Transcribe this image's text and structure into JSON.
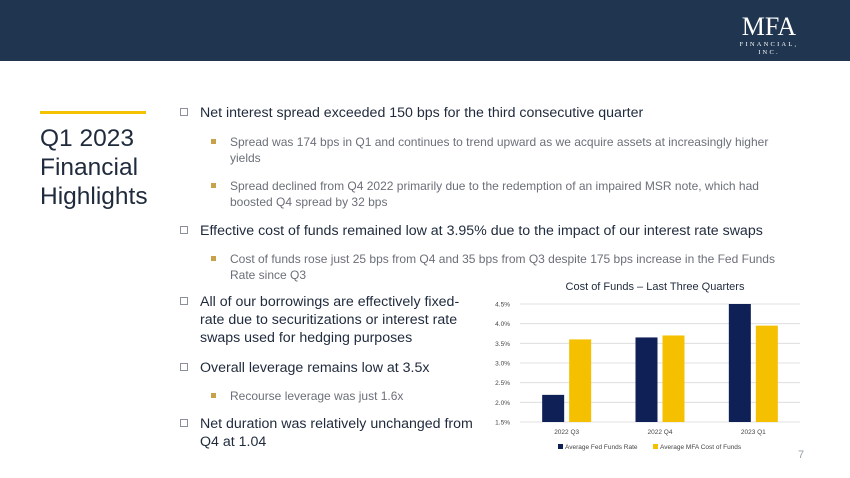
{
  "logo": {
    "main": "MFA",
    "sub": "FINANCIAL, INC."
  },
  "title": {
    "line1": "Q1 2023",
    "line2": "Financial",
    "line3": "Highlights"
  },
  "bullets": [
    {
      "text": "Net interest spread exceeded 150 bps for the third consecutive quarter",
      "subs": [
        "Spread was 174 bps in Q1 and continues to trend upward as we acquire assets at increasingly higher yields",
        "Spread declined from Q4 2022 primarily due to the redemption of an impaired MSR note, which had boosted Q4 spread by 32 bps"
      ]
    },
    {
      "text": "Effective cost of funds remained low at 3.95% due to the impact of our interest rate swaps",
      "subs": [
        "Cost of funds rose just 25 bps from Q4 and 35 bps from Q3 despite 175 bps increase in the Fed Funds Rate since Q3"
      ]
    }
  ],
  "lower_bullets": [
    {
      "text": "All of our borrowings are effectively fixed-rate due to securitizations or interest rate swaps used for hedging purposes",
      "subs": []
    },
    {
      "text": "Overall leverage remains low at 3.5x",
      "subs": [
        "Recourse leverage was just 1.6x"
      ]
    },
    {
      "text": "Net duration was relatively unchanged from Q4 at 1.04",
      "subs": []
    }
  ],
  "page_number": "7",
  "colors": {
    "navy": "#1f3550",
    "gold": "#f3c200",
    "series_fed": "#0f2057",
    "series_mfa": "#f5c000"
  },
  "chart_data": {
    "type": "bar",
    "title": "Cost of Funds – Last Three Quarters",
    "categories": [
      "2022 Q3",
      "2022 Q4",
      "2023 Q1"
    ],
    "series": [
      {
        "name": "Average Fed Funds Rate",
        "values": [
          2.19,
          3.65,
          4.52
        ]
      },
      {
        "name": "Average MFA Cost of Funds",
        "values": [
          3.6,
          3.7,
          3.95
        ]
      }
    ],
    "ylim": [
      1.5,
      4.5
    ],
    "yticks": [
      "1.5%",
      "2.0%",
      "2.5%",
      "3.0%",
      "3.5%",
      "4.0%",
      "4.5%"
    ],
    "grid": true,
    "legend": "bottom"
  }
}
